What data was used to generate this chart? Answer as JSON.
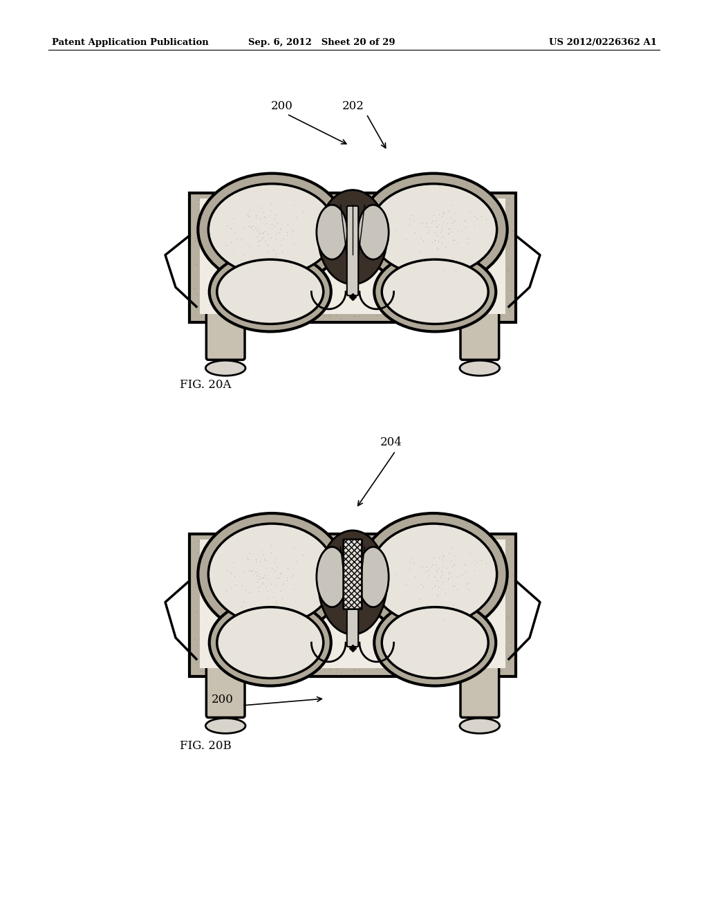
{
  "bg_color": "#ffffff",
  "header_left": "Patent Application Publication",
  "header_mid": "Sep. 6, 2012   Sheet 20 of 29",
  "header_right": "US 2012/0226362 A1",
  "fig_label_A": "FIG. 20A",
  "fig_label_B": "FIG. 20B",
  "label_200_A": "200",
  "label_202_A": "202",
  "label_204_B": "204",
  "label_200_B": "200",
  "stipple_color": "#c8c0b0",
  "bone_dark": "#1a1a1a",
  "bone_gray": "#888880",
  "condyle_fill": "#e8e4dc",
  "canal_dark": "#2a2a2a"
}
